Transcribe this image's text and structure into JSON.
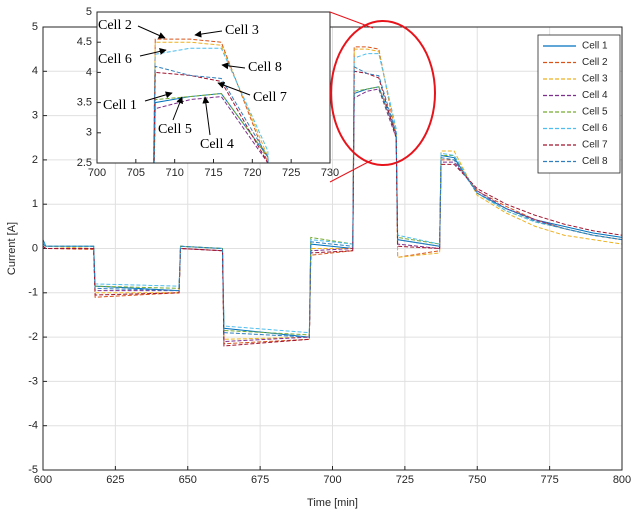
{
  "chart_data": [
    {
      "type": "line",
      "x_label": "Time [min]",
      "y_label": "Current [A]",
      "x": [
        600,
        601,
        617.5,
        618,
        647,
        647.5,
        662,
        662.5,
        692,
        692.5,
        707,
        707.5,
        712,
        716,
        722,
        722.5,
        737,
        737.5,
        742,
        750,
        760,
        770,
        780,
        790,
        800
      ],
      "series": [
        {
          "name": "Cell 1",
          "color": "#0072bd",
          "style": "solid",
          "values": [
            0.2,
            0.05,
            0.05,
            -0.85,
            -0.95,
            0.05,
            0.0,
            -1.8,
            -2.0,
            0.1,
            0.0,
            3.5,
            3.6,
            3.65,
            2.6,
            0.2,
            0.05,
            2.1,
            2.05,
            1.25,
            0.9,
            0.65,
            0.5,
            0.35,
            0.25
          ]
        },
        {
          "name": "Cell 2",
          "color": "#d95319",
          "style": "dashed",
          "values": [
            0.05,
            0.0,
            -0.02,
            -1.1,
            -1.0,
            0.0,
            -0.05,
            -2.15,
            -2.05,
            -0.15,
            -0.05,
            4.55,
            4.55,
            4.5,
            2.5,
            -0.2,
            -0.05,
            2.0,
            2.0,
            1.3,
            0.95,
            0.65,
            0.45,
            0.3,
            0.2
          ]
        },
        {
          "name": "Cell 3",
          "color": "#edb120",
          "style": "dashed",
          "values": [
            0.1,
            0.05,
            0.0,
            -1.0,
            -1.0,
            0.05,
            0.0,
            -2.05,
            -2.0,
            0.0,
            0.0,
            4.5,
            4.5,
            4.45,
            2.6,
            -0.2,
            -0.1,
            2.2,
            2.2,
            1.2,
            0.8,
            0.5,
            0.3,
            0.2,
            0.1
          ]
        },
        {
          "name": "Cell 4",
          "color": "#7e2f8e",
          "style": "dashed",
          "values": [
            0.05,
            0.0,
            0.0,
            -0.95,
            -0.95,
            0.0,
            -0.05,
            -2.1,
            -2.0,
            -0.05,
            0.0,
            3.4,
            3.55,
            3.6,
            2.5,
            0.1,
            0.0,
            1.95,
            1.95,
            1.3,
            0.9,
            0.65,
            0.45,
            0.3,
            0.2
          ]
        },
        {
          "name": "Cell 5",
          "color": "#77ac30",
          "style": "dashed",
          "values": [
            0.1,
            0.05,
            0.05,
            -0.85,
            -0.9,
            0.05,
            0.0,
            -1.85,
            -1.95,
            0.25,
            0.1,
            3.55,
            3.6,
            3.65,
            2.6,
            0.25,
            0.1,
            2.1,
            2.1,
            1.25,
            0.85,
            0.6,
            0.45,
            0.3,
            0.2
          ]
        },
        {
          "name": "Cell 6",
          "color": "#4dbeee",
          "style": "dashed",
          "values": [
            0.15,
            0.05,
            0.05,
            -0.8,
            -0.85,
            0.05,
            0.0,
            -1.75,
            -1.9,
            0.2,
            0.1,
            4.3,
            4.4,
            4.4,
            2.7,
            0.3,
            0.1,
            2.15,
            2.1,
            1.25,
            0.85,
            0.6,
            0.45,
            0.3,
            0.2
          ]
        },
        {
          "name": "Cell 7",
          "color": "#a2142f",
          "style": "dashed",
          "values": [
            0.05,
            0.0,
            0.0,
            -1.05,
            -1.0,
            0.0,
            -0.05,
            -2.2,
            -2.05,
            -0.1,
            -0.05,
            4.0,
            3.95,
            3.85,
            2.5,
            0.05,
            0.0,
            1.9,
            1.9,
            1.35,
            1.0,
            0.75,
            0.55,
            0.4,
            0.3
          ]
        },
        {
          "name": "Cell 8",
          "color": "#2f7fbf",
          "style": "dashed",
          "values": [
            0.1,
            0.05,
            0.05,
            -0.9,
            -0.95,
            0.05,
            0.0,
            -1.9,
            -2.0,
            0.15,
            0.05,
            4.1,
            3.95,
            3.9,
            2.6,
            0.2,
            0.05,
            2.05,
            2.0,
            1.25,
            0.9,
            0.62,
            0.45,
            0.3,
            0.2
          ]
        }
      ],
      "xlim": [
        600,
        800
      ],
      "xticks": [
        600,
        625,
        650,
        675,
        700,
        725,
        750,
        775,
        800
      ],
      "ylim": [
        -5,
        5
      ],
      "yticks": [
        -5,
        -4,
        -3,
        -2,
        -1,
        0,
        1,
        2,
        3,
        4,
        5
      ],
      "grid": true,
      "legend": "top-right"
    },
    {
      "type": "inset",
      "xlim": [
        700,
        730
      ],
      "xticks": [
        700,
        705,
        710,
        715,
        720,
        725,
        730
      ],
      "ylim": [
        2.5,
        5
      ],
      "yticks": [
        2.5,
        3,
        3.5,
        4,
        4.5,
        5
      ],
      "annotations": [
        "Cell 2",
        "Cell 3",
        "Cell 6",
        "Cell 8",
        "Cell 7",
        "Cell 1",
        "Cell 5",
        "Cell 4"
      ]
    }
  ]
}
